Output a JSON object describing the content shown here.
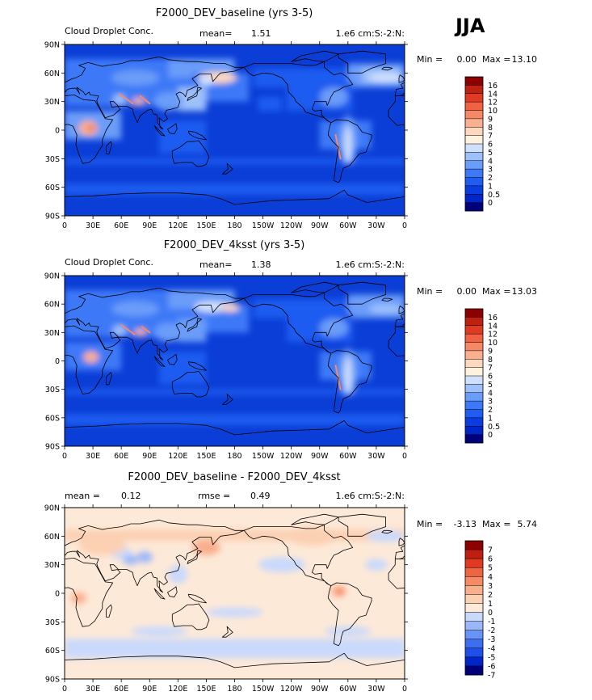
{
  "season": "JJA",
  "colors": {
    "abs_scale": [
      "#00007a",
      "#0026c9",
      "#0a3de0",
      "#1f5cf0",
      "#3d79f7",
      "#6a9cf9",
      "#9ec0fb",
      "#cfe0fd",
      "#fdf1df",
      "#fcd9be",
      "#fab090",
      "#f78866",
      "#f26142",
      "#e03b22",
      "#bf2010",
      "#8c0000"
    ],
    "diff_scale": [
      "#00007a",
      "#0026c9",
      "#1f4fe8",
      "#3d6ef2",
      "#6a93f6",
      "#9bb7f9",
      "#c9d9fc",
      "#fde9d8",
      "#fcd0b2",
      "#f9ae8c",
      "#f58a66",
      "#ef6441",
      "#e03b22",
      "#bf1e10",
      "#8c0000"
    ],
    "ocean_abs": "#0b3ed6",
    "ocean_diff": "#fde9d8",
    "coast": "#000000"
  },
  "panels": [
    {
      "title": "F2000_DEV_baseline (yrs 3-5)",
      "left_label": "Cloud Droplet Conc.",
      "stat1_label": "mean=",
      "stat1_value": "1.51",
      "stat2_label": "",
      "stat2_value": "",
      "units": "1.e6 cm:S:-2:N:",
      "min_label": "Min =",
      "min_value": "0.00",
      "max_label": "Max =",
      "max_value": "13.10",
      "colorbar_labels": [
        "16",
        "14",
        "12",
        "10",
        "9",
        "8",
        "7",
        "6",
        "5",
        "4",
        "3",
        "2",
        "1",
        "0.5",
        "0"
      ]
    },
    {
      "title": "F2000_DEV_4ksst (yrs 3-5)",
      "left_label": "Cloud Droplet Conc.",
      "stat1_label": "mean=",
      "stat1_value": "1.38",
      "stat2_label": "",
      "stat2_value": "",
      "units": "1.e6 cm:S:-2:N:",
      "min_label": "Min =",
      "min_value": "0.00",
      "max_label": "Max =",
      "max_value": "13.03",
      "colorbar_labels": [
        "16",
        "14",
        "12",
        "10",
        "9",
        "8",
        "7",
        "6",
        "5",
        "4",
        "3",
        "2",
        "1",
        "0.5",
        "0"
      ]
    },
    {
      "title": "F2000_DEV_baseline - F2000_DEV_4ksst",
      "left_label": "",
      "stat1_label": "mean =",
      "stat1_value": "0.12",
      "stat2_label": "rmse =",
      "stat2_value": "0.49",
      "units": "1.e6 cm:S:-2:N:",
      "min_label": "Min =",
      "min_value": "-3.13",
      "max_label": "Max =",
      "max_value": "5.74",
      "colorbar_labels": [
        "7",
        "6",
        "5",
        "4",
        "3",
        "2",
        "1",
        "0",
        "-1",
        "-2",
        "-3",
        "-4",
        "-5",
        "-6",
        "-7"
      ]
    }
  ],
  "chart_data": [
    {
      "type": "heatmap",
      "title": "F2000_DEV_baseline (yrs 3-5)",
      "variable": "Cloud Droplet Conc.",
      "units": "1.e6 cm:S:-2:N:",
      "mean": 1.51,
      "min": 0.0,
      "max": 13.1,
      "x_tick_labels": [
        "0",
        "30E",
        "60E",
        "90E",
        "120E",
        "150E",
        "180",
        "150W",
        "120W",
        "90W",
        "60W",
        "30W",
        "0"
      ],
      "y_tick_labels": [
        "90N",
        "60N",
        "30N",
        "0",
        "30S",
        "60S",
        "90S"
      ],
      "levels": [
        0,
        0.5,
        1,
        2,
        3,
        4,
        5,
        6,
        7,
        8,
        9,
        10,
        12,
        14,
        16
      ]
    },
    {
      "type": "heatmap",
      "title": "F2000_DEV_4ksst (yrs 3-5)",
      "variable": "Cloud Droplet Conc.",
      "units": "1.e6 cm:S:-2:N:",
      "mean": 1.38,
      "min": 0.0,
      "max": 13.03,
      "x_tick_labels": [
        "0",
        "30E",
        "60E",
        "90E",
        "120E",
        "150E",
        "180",
        "150W",
        "120W",
        "90W",
        "60W",
        "30W",
        "0"
      ],
      "y_tick_labels": [
        "90N",
        "60N",
        "30N",
        "0",
        "30S",
        "60S",
        "90S"
      ],
      "levels": [
        0,
        0.5,
        1,
        2,
        3,
        4,
        5,
        6,
        7,
        8,
        9,
        10,
        12,
        14,
        16
      ]
    },
    {
      "type": "heatmap",
      "title": "F2000_DEV_baseline - F2000_DEV_4ksst",
      "variable": "difference",
      "units": "1.e6 cm:S:-2:N:",
      "mean": 0.12,
      "rmse": 0.49,
      "min": -3.13,
      "max": 5.74,
      "x_tick_labels": [
        "0",
        "30E",
        "60E",
        "90E",
        "120E",
        "150E",
        "180",
        "150W",
        "120W",
        "90W",
        "60W",
        "30W",
        "0"
      ],
      "y_tick_labels": [
        "90N",
        "60N",
        "30N",
        "0",
        "30S",
        "60S",
        "90S"
      ],
      "levels": [
        -7,
        -6,
        -5,
        -4,
        -3,
        -2,
        -1,
        0,
        1,
        2,
        3,
        4,
        5,
        6,
        7
      ]
    }
  ]
}
